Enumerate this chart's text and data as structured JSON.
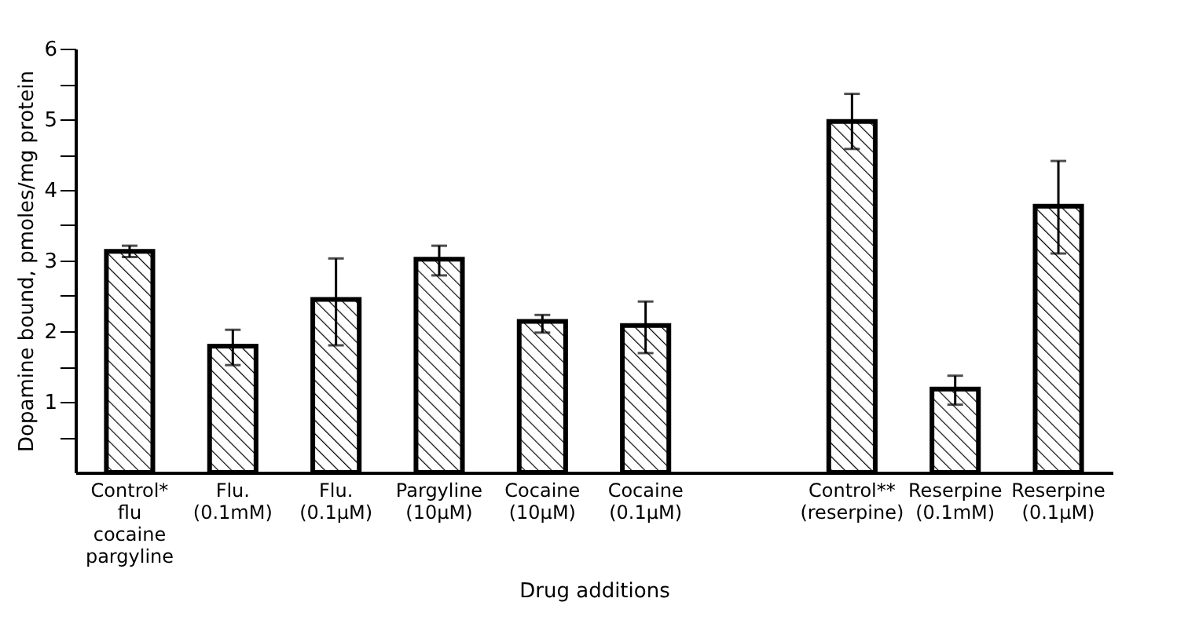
{
  "chart_data": {
    "type": "bar",
    "xlabel": "Drug additions",
    "ylabel": "Dopamine bound,  pmoles/mg protein",
    "categories": [
      "Control*\nflu\ncocaine\npargyline",
      "Flu.\n(0.1mM)",
      "Flu.\n(0.1μM)",
      "Pargyline\n(10μM)",
      "Cocaine\n(10μM)",
      "Cocaine\n(0.1μM)",
      null,
      "Control**\n(reserpine)",
      "Reserpine\n(0.1mM)",
      "Reserpine\n(0.1μM)"
    ],
    "series": [
      {
        "color": "#000000",
        "values": [
          3.13,
          1.79,
          2.45,
          3.02,
          2.14,
          2.08,
          null,
          4.97,
          1.18,
          3.77
        ],
        "errors": [
          [
            3.05,
            3.21
          ],
          [
            1.52,
            2.02
          ],
          [
            1.8,
            3.03
          ],
          [
            2.79,
            3.21
          ],
          [
            1.98,
            2.23
          ],
          [
            1.69,
            2.42
          ],
          null,
          [
            4.58,
            5.36
          ],
          [
            0.96,
            1.37
          ],
          [
            3.1,
            4.41
          ]
        ]
      }
    ],
    "ylim": [
      0,
      6
    ],
    "yticks": [
      {
        "value": 0.5,
        "label": null
      },
      1,
      {
        "value": 1.5,
        "label": null
      },
      2,
      {
        "value": 2.5,
        "label": null
      },
      3,
      {
        "value": 3.5,
        "label": null
      },
      4,
      {
        "value": 4.5,
        "label": null
      },
      5,
      {
        "value": 5.5,
        "label": null
      },
      6
    ],
    "grid": false
  }
}
